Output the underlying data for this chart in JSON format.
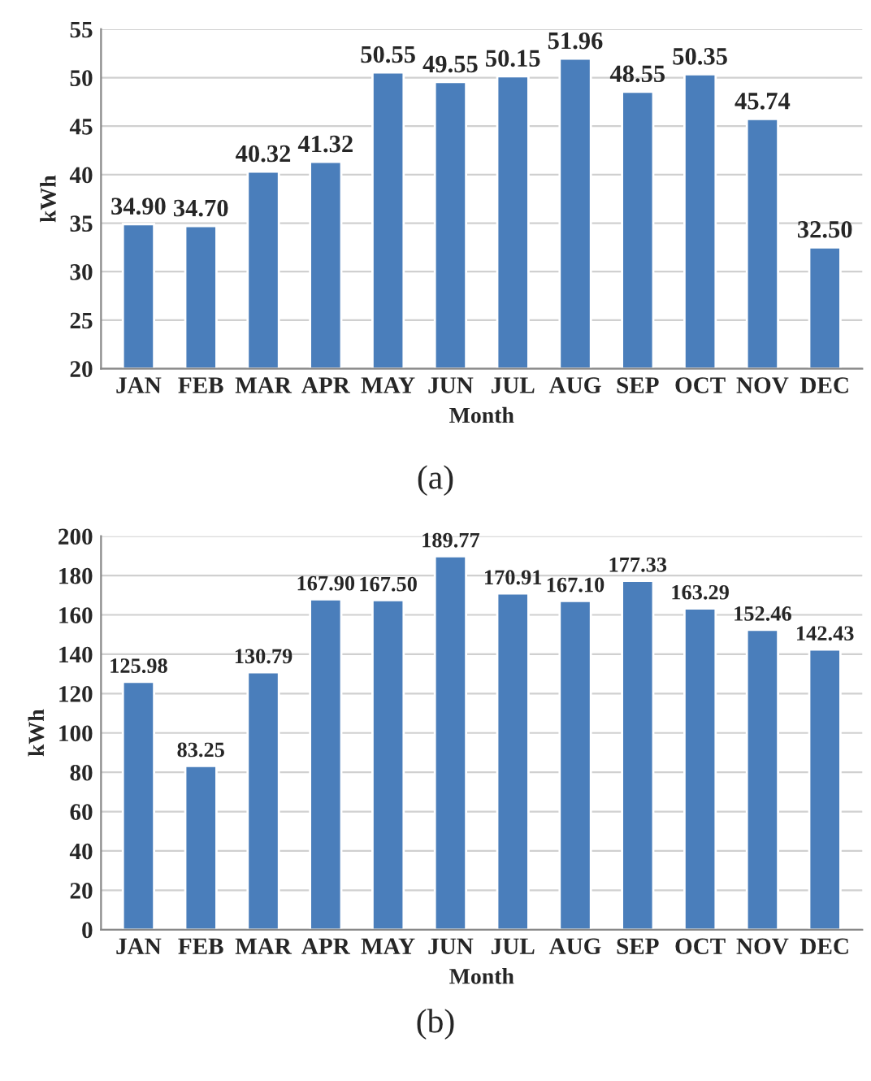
{
  "chart_data": [
    {
      "type": "bar",
      "xlabel": "Month",
      "ylabel": "kWh",
      "categories": [
        "JAN",
        "FEB",
        "MAR",
        "APR",
        "MAY",
        "JUN",
        "JUL",
        "AUG",
        "SEP",
        "OCT",
        "NOV",
        "DEC"
      ],
      "values": [
        34.9,
        34.7,
        40.32,
        41.32,
        50.55,
        49.55,
        50.15,
        51.96,
        48.55,
        50.35,
        45.74,
        32.5
      ],
      "value_labels": [
        "34.90",
        "34.70",
        "40.32",
        "41.32",
        "50.55",
        "49.55",
        "50.15",
        "51.96",
        "48.55",
        "50.35",
        "45.74",
        "32.50"
      ],
      "color": "#4a7ebb",
      "ylim": [
        20,
        55
      ],
      "yticks": [
        20,
        25,
        30,
        35,
        40,
        45,
        50,
        55
      ],
      "grid": "y",
      "annotations": [
        "(a)"
      ]
    },
    {
      "type": "bar",
      "xlabel": "Month",
      "ylabel": "kWh",
      "categories": [
        "JAN",
        "FEB",
        "MAR",
        "APR",
        "MAY",
        "JUN",
        "JUL",
        "AUG",
        "SEP",
        "OCT",
        "NOV",
        "DEC"
      ],
      "values": [
        125.98,
        83.25,
        130.79,
        167.9,
        167.5,
        189.77,
        170.91,
        167.1,
        177.33,
        163.29,
        152.46,
        142.43
      ],
      "value_labels": [
        "125.98",
        "83.25",
        "130.79",
        "167.90",
        "167.50",
        "189.77",
        "170.91",
        "167.10",
        "177.33",
        "163.29",
        "152.46",
        "142.43"
      ],
      "color": "#4a7ebb",
      "ylim": [
        0,
        200
      ],
      "yticks": [
        0,
        20,
        40,
        60,
        80,
        100,
        120,
        140,
        160,
        180,
        200
      ],
      "grid": "y",
      "annotations": [
        "(b)"
      ]
    }
  ]
}
